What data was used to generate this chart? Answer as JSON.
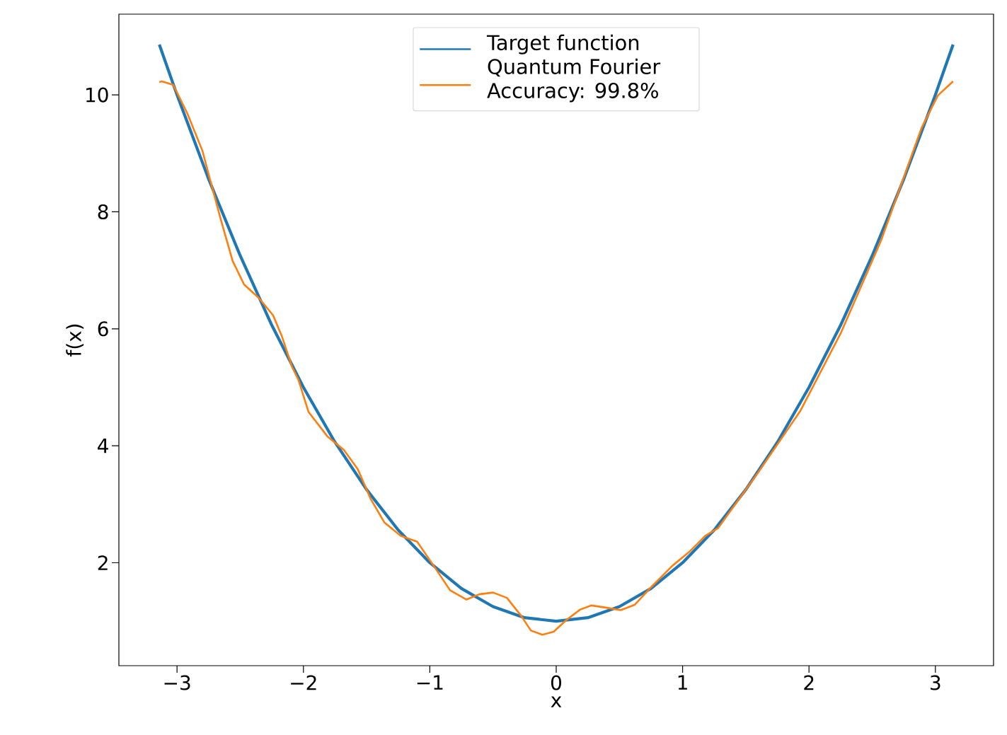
{
  "chart_data": {
    "type": "line",
    "xlabel": "x",
    "ylabel": "f(x)",
    "xlim": [
      -3.46,
      3.46
    ],
    "ylim": [
      0.24,
      11.38
    ],
    "xticks": [
      {
        "value": -3,
        "label": "−3"
      },
      {
        "value": -2,
        "label": "−2"
      },
      {
        "value": -1,
        "label": "−1"
      },
      0,
      1,
      2,
      3
    ],
    "yticks": [
      2,
      4,
      6,
      8,
      10
    ],
    "grid": false,
    "legend": "top",
    "line_style": "solid",
    "marker": "none",
    "series": [
      {
        "name": "Target function",
        "color": "#1f77b4",
        "x": [
          -3.14,
          -3.0,
          -2.75,
          -2.5,
          -2.25,
          -2.0,
          -1.75,
          -1.5,
          -1.25,
          -1.0,
          -0.75,
          -0.5,
          -0.25,
          0.0,
          0.25,
          0.5,
          0.75,
          1.0,
          1.25,
          1.5,
          1.75,
          2.0,
          2.25,
          2.5,
          2.75,
          3.0,
          3.14
        ],
        "values": [
          10.86,
          10.0,
          8.56,
          7.25,
          6.06,
          5.0,
          4.06,
          3.25,
          2.56,
          2.0,
          1.56,
          1.25,
          1.06,
          1.0,
          1.06,
          1.25,
          1.56,
          2.0,
          2.56,
          3.25,
          4.06,
          5.0,
          6.06,
          7.25,
          8.56,
          10.0,
          10.86
        ]
      },
      {
        "name": "Quantum Fourier Accuracy: 99.8%",
        "color": "#ff7f0e",
        "x": [
          -3.14,
          -3.12,
          -3.03,
          -2.92,
          -2.8,
          -2.73,
          -2.65,
          -2.56,
          -2.47,
          -2.35,
          -2.24,
          -2.17,
          -2.09,
          -2.04,
          -1.96,
          -1.81,
          -1.68,
          -1.57,
          -1.47,
          -1.36,
          -1.23,
          -1.1,
          -0.97,
          -0.84,
          -0.71,
          -0.61,
          -0.5,
          -0.39,
          -0.28,
          -0.2,
          -0.11,
          -0.02,
          0.08,
          0.19,
          0.28,
          0.4,
          0.51,
          0.62,
          0.75,
          0.92,
          1.05,
          1.18,
          1.28,
          1.6,
          1.93,
          2.25,
          2.57,
          2.73,
          2.89,
          3.02,
          3.14
        ],
        "values": [
          10.22,
          10.23,
          10.17,
          9.69,
          9.05,
          8.48,
          7.84,
          7.16,
          6.76,
          6.52,
          6.23,
          5.87,
          5.35,
          5.13,
          4.58,
          4.16,
          3.93,
          3.6,
          3.1,
          2.69,
          2.46,
          2.36,
          1.95,
          1.53,
          1.37,
          1.46,
          1.49,
          1.4,
          1.1,
          0.84,
          0.77,
          0.82,
          1.02,
          1.2,
          1.27,
          1.23,
          1.19,
          1.28,
          1.58,
          1.95,
          2.18,
          2.46,
          2.59,
          3.55,
          4.59,
          5.92,
          7.51,
          8.47,
          9.43,
          9.99,
          10.23
        ]
      }
    ]
  }
}
